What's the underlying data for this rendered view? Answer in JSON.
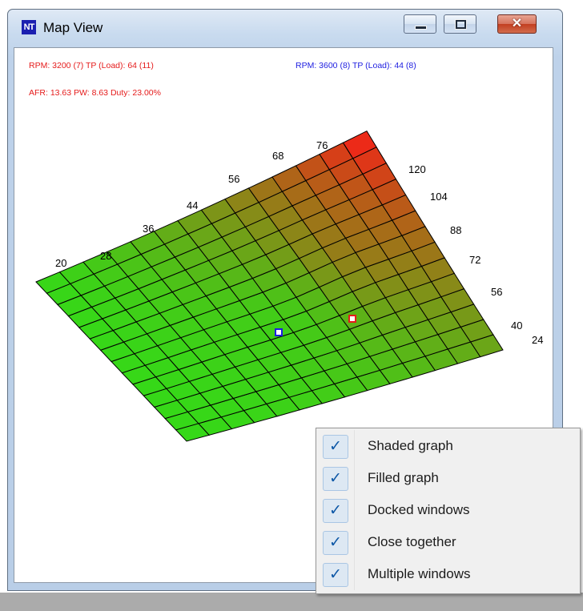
{
  "window": {
    "icon_text": "NT",
    "title": "Map View",
    "close_glyph": "✕"
  },
  "readouts": {
    "red_rpm_tp": "RPM: 3200 (7)   TP (Load): 64 (11)",
    "blue_rpm_tp": "RPM: 3600 (8)   TP (Load): 44 (8)",
    "red_afr": "AFR: 13.63   PW: 8.63   Duty: 23.00%"
  },
  "rpm_axis": [
    "20",
    "28",
    "36",
    "44",
    "56",
    "68",
    "76"
  ],
  "load_axis": [
    "120",
    "104",
    "88",
    "72",
    "56",
    "40",
    "24"
  ],
  "graph": {
    "low_color": "#36d818",
    "high_color": "#ff1818",
    "grid_line_color": "#000000",
    "cursor_blue": "#1d1de0",
    "cursor_red": "#e51b1b"
  },
  "context_menu": {
    "check_glyph": "✓",
    "items": [
      {
        "label": "Shaded graph",
        "checked": true
      },
      {
        "label": "Filled graph",
        "checked": true
      },
      {
        "label": "Docked windows",
        "checked": true
      },
      {
        "label": "Close together",
        "checked": true
      },
      {
        "label": "Multiple windows",
        "checked": true
      }
    ]
  }
}
